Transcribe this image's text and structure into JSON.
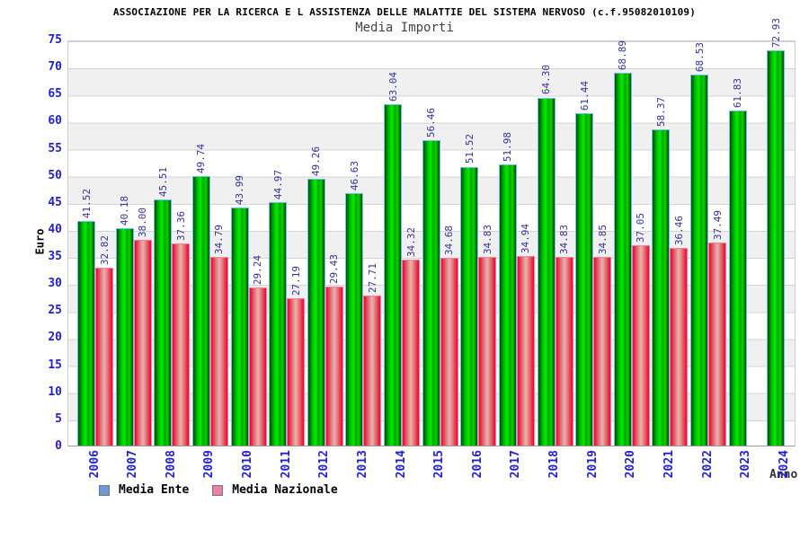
{
  "header": {
    "title": "ASSOCIAZIONE PER LA RICERCA E L ASSISTENZA DELLE MALATTIE DEL SISTEMA NERVOSO (c.f.95082010109)",
    "subtitle": "Media Importi"
  },
  "colors": {
    "ente_bright": "#00ee00",
    "ente_dark": "#015001",
    "ente_border": "#6cc0f4",
    "nazionale_edge": "#f20133",
    "nazionale_center": "#eeb0b0",
    "nazionale_border": "#ff8095",
    "tick_label": "#2222cc",
    "value_label": "#333399",
    "band": "#f0f0f0",
    "gridline": "#d4d4d4",
    "legend_ente_swatch": "#6b9bd2",
    "legend_nazionale_swatch": "#ee7fa0"
  },
  "chart_data": {
    "type": "bar",
    "title": "ASSOCIAZIONE PER LA RICERCA E L ASSISTENZA DELLE MALATTIE DEL SISTEMA NERVOSO (c.f.95082010109)",
    "subtitle": "Media Importi",
    "xlabel": "Anno",
    "ylabel": "Euro",
    "ylim": [
      0,
      75
    ],
    "ytick_step": 5,
    "grid": true,
    "legend_position": "bottom-left",
    "categories": [
      "2006",
      "2007",
      "2008",
      "2009",
      "2010",
      "2011",
      "2012",
      "2013",
      "2014",
      "2015",
      "2016",
      "2017",
      "2018",
      "2019",
      "2020",
      "2021",
      "2022",
      "2023",
      "2024"
    ],
    "series": [
      {
        "name": "Media Ente",
        "values": [
          41.52,
          40.18,
          45.51,
          49.74,
          43.99,
          44.97,
          49.26,
          46.63,
          63.04,
          56.46,
          51.52,
          51.98,
          64.3,
          61.44,
          68.89,
          58.37,
          68.53,
          61.83,
          72.93
        ]
      },
      {
        "name": "Media Nazionale",
        "values": [
          32.82,
          38.0,
          37.36,
          34.79,
          29.24,
          27.19,
          29.43,
          27.71,
          34.32,
          34.68,
          34.83,
          34.94,
          34.83,
          34.85,
          37.05,
          36.46,
          37.49,
          null,
          null
        ]
      }
    ]
  },
  "legend": {
    "ente_label": "Media Ente",
    "nazionale_label": "Media Nazionale"
  }
}
